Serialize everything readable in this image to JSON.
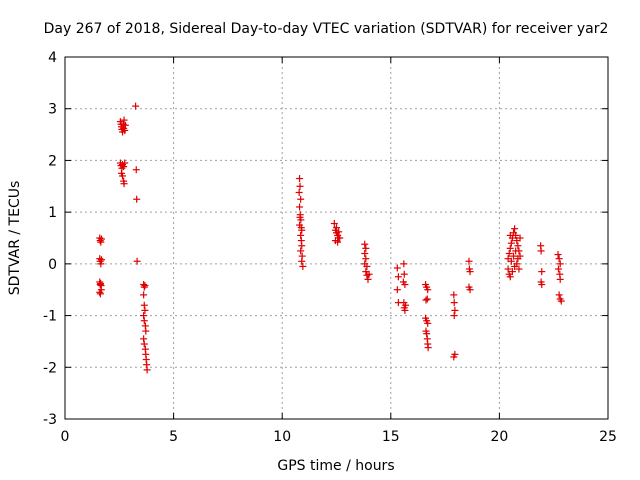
{
  "chart_data": {
    "type": "scatter",
    "title": "Day 267 of 2018, Sidereal Day-to-day VTEC variation (SDTVAR) for receiver yar2",
    "xlabel": "GPS time / hours",
    "ylabel": "SDTVAR / TECUs",
    "xlim": [
      0,
      25
    ],
    "ylim": [
      -3,
      4
    ],
    "xticks": [
      0,
      5,
      10,
      15,
      20,
      25
    ],
    "yticks": [
      -3,
      -2,
      -1,
      0,
      1,
      2,
      3,
      4
    ],
    "xtick_labels": [
      "0",
      "5",
      "10",
      "15",
      "20",
      "25"
    ],
    "ytick_labels": [
      "-3",
      "-2",
      "-1",
      "0",
      "1",
      "2",
      "3",
      "4"
    ],
    "grid": true,
    "marker": "+",
    "series_color": "#e00000",
    "points": [
      [
        1.6,
        0.5
      ],
      [
        1.62,
        0.45
      ],
      [
        1.65,
        0.42
      ],
      [
        1.68,
        0.48
      ],
      [
        1.6,
        0.1
      ],
      [
        1.62,
        0.05
      ],
      [
        1.65,
        0.0
      ],
      [
        1.68,
        0.08
      ],
      [
        1.6,
        -0.35
      ],
      [
        1.62,
        -0.4
      ],
      [
        1.64,
        -0.38
      ],
      [
        1.66,
        -0.42
      ],
      [
        1.6,
        -0.55
      ],
      [
        1.63,
        -0.58
      ],
      [
        1.67,
        -0.5
      ],
      [
        2.55,
        2.75
      ],
      [
        2.58,
        2.7
      ],
      [
        2.6,
        2.65
      ],
      [
        2.62,
        2.6
      ],
      [
        2.65,
        2.55
      ],
      [
        2.68,
        2.7
      ],
      [
        2.7,
        2.62
      ],
      [
        2.72,
        2.78
      ],
      [
        2.75,
        2.58
      ],
      [
        2.78,
        2.68
      ],
      [
        2.55,
        1.95
      ],
      [
        2.58,
        1.9
      ],
      [
        2.62,
        1.85
      ],
      [
        2.65,
        1.92
      ],
      [
        2.7,
        1.88
      ],
      [
        2.75,
        1.95
      ],
      [
        2.6,
        1.75
      ],
      [
        2.65,
        1.7
      ],
      [
        2.7,
        1.6
      ],
      [
        2.72,
        1.55
      ],
      [
        3.25,
        3.05
      ],
      [
        3.28,
        1.82
      ],
      [
        3.3,
        1.25
      ],
      [
        3.32,
        0.05
      ],
      [
        3.62,
        -0.4
      ],
      [
        3.65,
        -0.45
      ],
      [
        3.68,
        -0.42
      ],
      [
        3.62,
        -0.6
      ],
      [
        3.65,
        -0.8
      ],
      [
        3.68,
        -0.9
      ],
      [
        3.62,
        -1.0
      ],
      [
        3.65,
        -1.1
      ],
      [
        3.7,
        -1.2
      ],
      [
        3.72,
        -1.3
      ],
      [
        3.62,
        -1.45
      ],
      [
        3.65,
        -1.55
      ],
      [
        3.7,
        -1.65
      ],
      [
        3.72,
        -1.75
      ],
      [
        3.74,
        -1.85
      ],
      [
        3.76,
        -1.95
      ],
      [
        3.78,
        -2.05
      ],
      [
        10.8,
        1.65
      ],
      [
        10.82,
        1.5
      ],
      [
        10.78,
        1.38
      ],
      [
        10.85,
        1.25
      ],
      [
        10.8,
        1.1
      ],
      [
        10.83,
        0.95
      ],
      [
        10.86,
        0.85
      ],
      [
        10.8,
        0.75
      ],
      [
        10.9,
        0.65
      ],
      [
        10.85,
        0.55
      ],
      [
        10.88,
        0.45
      ],
      [
        10.9,
        0.35
      ],
      [
        10.85,
        0.25
      ],
      [
        10.92,
        0.15
      ],
      [
        10.9,
        0.05
      ],
      [
        10.95,
        -0.05
      ],
      [
        10.82,
        0.9
      ],
      [
        10.88,
        0.7
      ],
      [
        12.4,
        0.78
      ],
      [
        12.45,
        0.65
      ],
      [
        12.5,
        0.6
      ],
      [
        12.55,
        0.55
      ],
      [
        12.6,
        0.5
      ],
      [
        12.45,
        0.45
      ],
      [
        12.55,
        0.42
      ],
      [
        12.65,
        0.5
      ],
      [
        12.5,
        0.7
      ],
      [
        12.6,
        0.62
      ],
      [
        13.8,
        0.38
      ],
      [
        13.85,
        0.3
      ],
      [
        13.8,
        0.2
      ],
      [
        13.85,
        0.1
      ],
      [
        13.8,
        0.0
      ],
      [
        13.9,
        -0.05
      ],
      [
        13.85,
        -0.15
      ],
      [
        13.9,
        -0.22
      ],
      [
        13.95,
        -0.3
      ],
      [
        14.0,
        -0.2
      ],
      [
        15.3,
        -0.08
      ],
      [
        15.35,
        -0.25
      ],
      [
        15.3,
        -0.5
      ],
      [
        15.35,
        -0.75
      ],
      [
        15.6,
        0.0
      ],
      [
        15.62,
        -0.2
      ],
      [
        15.58,
        -0.35
      ],
      [
        15.65,
        -0.4
      ],
      [
        15.6,
        -0.75
      ],
      [
        15.62,
        -0.85
      ],
      [
        15.65,
        -0.9
      ],
      [
        15.68,
        -0.8
      ],
      [
        16.6,
        -0.4
      ],
      [
        16.65,
        -0.45
      ],
      [
        16.7,
        -0.5
      ],
      [
        16.62,
        -0.7
      ],
      [
        16.68,
        -0.68
      ],
      [
        16.6,
        -1.05
      ],
      [
        16.65,
        -1.1
      ],
      [
        16.7,
        -1.15
      ],
      [
        16.62,
        -1.3
      ],
      [
        16.65,
        -1.35
      ],
      [
        16.68,
        -1.45
      ],
      [
        16.7,
        -1.55
      ],
      [
        16.72,
        -1.62
      ],
      [
        17.9,
        -0.6
      ],
      [
        17.92,
        -0.75
      ],
      [
        17.95,
        -0.9
      ],
      [
        17.92,
        -1.0
      ],
      [
        17.95,
        -1.75
      ],
      [
        17.9,
        -1.8
      ],
      [
        18.6,
        0.05
      ],
      [
        18.62,
        -0.1
      ],
      [
        18.65,
        -0.15
      ],
      [
        18.6,
        -0.45
      ],
      [
        18.65,
        -0.5
      ],
      [
        20.4,
        0.1
      ],
      [
        20.45,
        0.2
      ],
      [
        20.5,
        0.3
      ],
      [
        20.55,
        0.4
      ],
      [
        20.6,
        0.5
      ],
      [
        20.65,
        0.6
      ],
      [
        20.7,
        0.68
      ],
      [
        20.75,
        0.55
      ],
      [
        20.8,
        0.45
      ],
      [
        20.85,
        0.35
      ],
      [
        20.9,
        0.25
      ],
      [
        20.95,
        0.15
      ],
      [
        20.4,
        -0.1
      ],
      [
        20.45,
        -0.2
      ],
      [
        20.5,
        -0.25
      ],
      [
        20.6,
        -0.15
      ],
      [
        20.7,
        -0.05
      ],
      [
        20.8,
        0.0
      ],
      [
        20.9,
        -0.1
      ],
      [
        20.55,
        0.05
      ],
      [
        20.65,
        0.15
      ],
      [
        20.75,
        0.25
      ],
      [
        20.85,
        0.1
      ],
      [
        20.5,
        0.55
      ],
      [
        20.95,
        0.5
      ],
      [
        21.9,
        0.35
      ],
      [
        21.92,
        0.25
      ],
      [
        21.95,
        -0.15
      ],
      [
        21.92,
        -0.35
      ],
      [
        21.95,
        -0.4
      ],
      [
        22.7,
        0.18
      ],
      [
        22.75,
        0.1
      ],
      [
        22.8,
        0.0
      ],
      [
        22.72,
        -0.1
      ],
      [
        22.78,
        -0.2
      ],
      [
        22.8,
        -0.3
      ],
      [
        22.75,
        -0.6
      ],
      [
        22.8,
        -0.68
      ],
      [
        22.85,
        -0.72
      ]
    ]
  }
}
